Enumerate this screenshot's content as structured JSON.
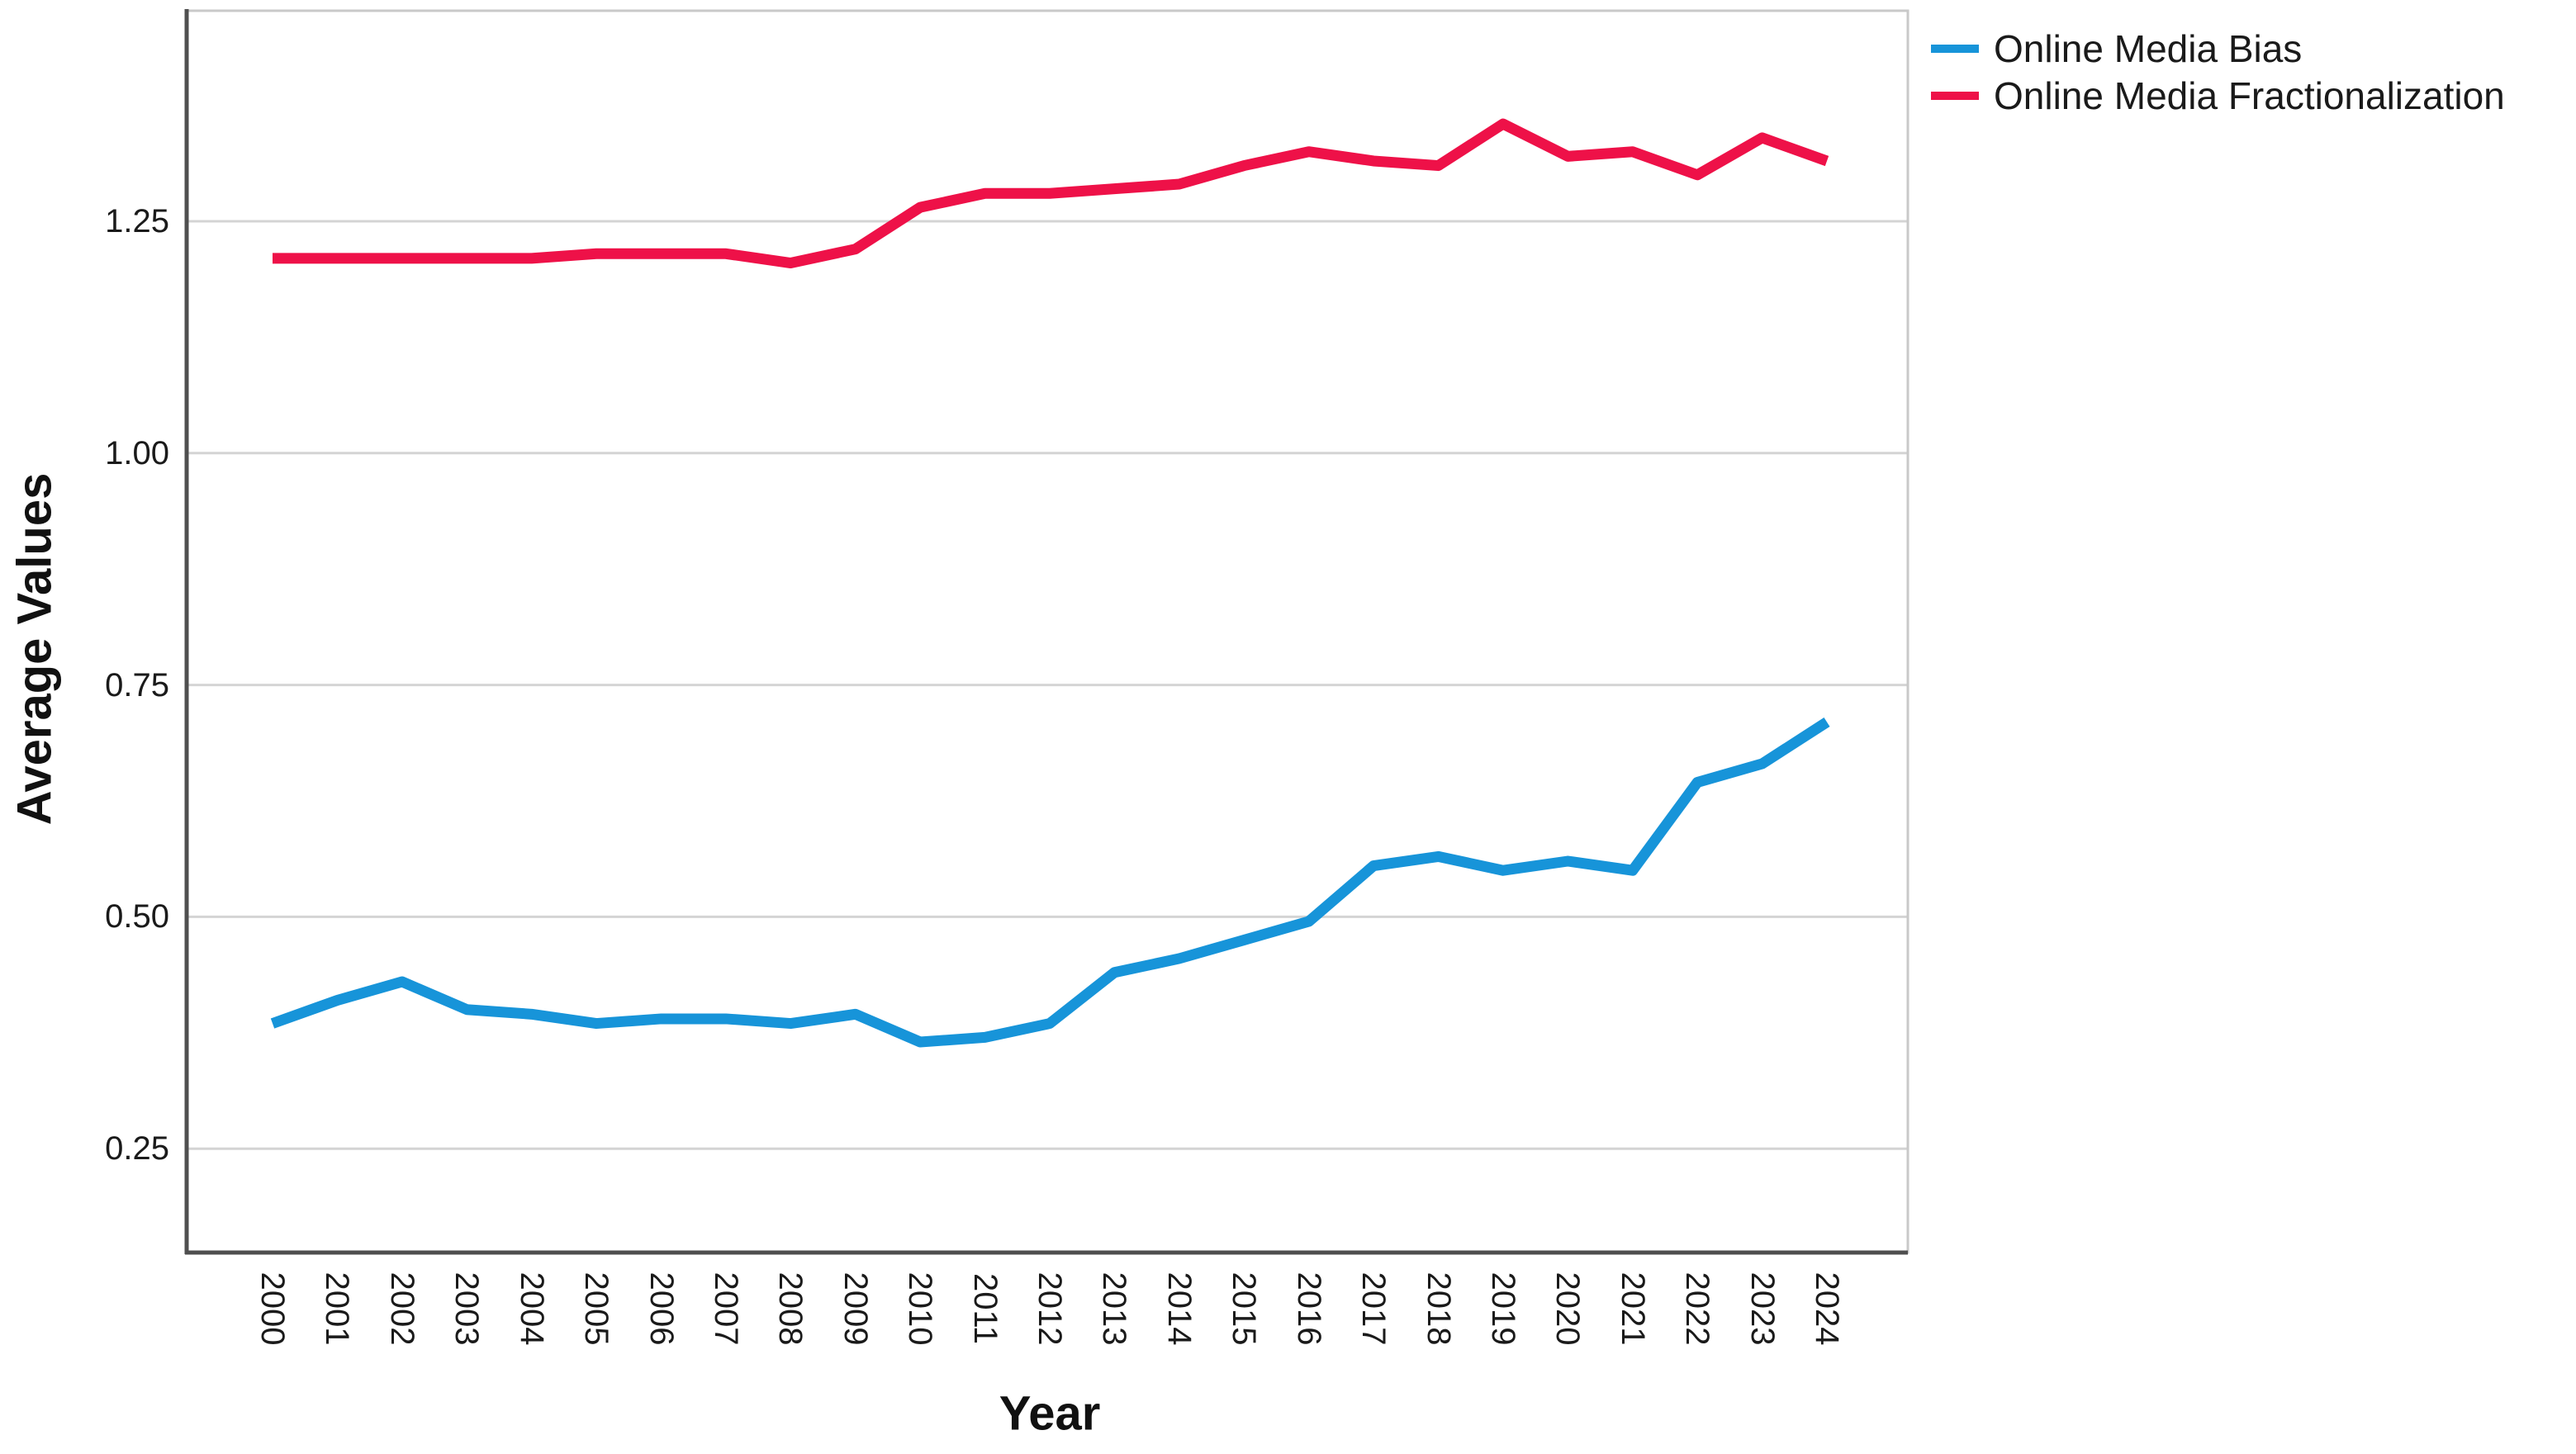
{
  "chart_data": {
    "type": "line",
    "title": "",
    "xlabel": "Year",
    "ylabel": "Average Values",
    "x": [
      2000,
      2001,
      2002,
      2003,
      2004,
      2005,
      2006,
      2007,
      2008,
      2009,
      2010,
      2011,
      2012,
      2013,
      2014,
      2015,
      2016,
      2017,
      2018,
      2019,
      2020,
      2021,
      2022,
      2023,
      2024
    ],
    "x_tick_labels": [
      "2000",
      "2001",
      "2002",
      "2003",
      "2004",
      "2005",
      "2006",
      "2007",
      "2008",
      "2009",
      "2010",
      "2011",
      "2012",
      "2013",
      "2014",
      "2015",
      "2016",
      "2017",
      "2018",
      "2019",
      "2020",
      "2021",
      "2022",
      "2023",
      "2024"
    ],
    "y_ticks": [
      0.25,
      0.5,
      0.75,
      1.0,
      1.25
    ],
    "y_tick_labels": [
      "0.25",
      "0.50",
      "0.75",
      "1.00",
      "1.25"
    ],
    "ylim": [
      0.14,
      1.48
    ],
    "grid": "horizontal-only",
    "legend_position": "top-right-outside",
    "series": [
      {
        "name": "Online Media Bias",
        "color": "#1794D9",
        "values": [
          0.385,
          0.41,
          0.43,
          0.4,
          0.395,
          0.385,
          0.39,
          0.39,
          0.385,
          0.395,
          0.365,
          0.37,
          0.385,
          0.44,
          0.455,
          0.475,
          0.495,
          0.555,
          0.565,
          0.55,
          0.56,
          0.55,
          0.645,
          0.665,
          0.71
        ]
      },
      {
        "name": "Online Media Fractionalization",
        "color": "#EE1148",
        "values": [
          1.21,
          1.21,
          1.21,
          1.21,
          1.21,
          1.215,
          1.215,
          1.215,
          1.205,
          1.22,
          1.265,
          1.28,
          1.28,
          1.285,
          1.29,
          1.31,
          1.325,
          1.315,
          1.31,
          1.355,
          1.32,
          1.325,
          1.3,
          1.34,
          1.315
        ]
      }
    ]
  },
  "colors": {
    "background": "#FFFFFF",
    "gridline": "#D4D4D4",
    "frame": "#C9C9C9",
    "axis": "#4F4F4F",
    "text": "#1A1A1A"
  }
}
